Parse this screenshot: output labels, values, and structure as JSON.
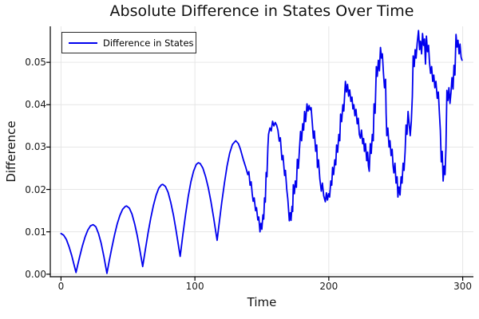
{
  "chart_data": {
    "type": "line",
    "title": "Absolute Difference in States Over Time",
    "xlabel": "Time",
    "ylabel": "Difference",
    "xlim": [
      -8,
      308
    ],
    "ylim": [
      -0.0006,
      0.0585
    ],
    "grid": true,
    "legend_position": "top-left",
    "x_ticks": [
      "0",
      "100",
      "200",
      "300"
    ],
    "y_ticks": [
      "0.00",
      "0.01",
      "0.02",
      "0.03",
      "0.04",
      "0.05"
    ],
    "colors": {
      "series": "#0000ee",
      "grid": "#e6e6e6",
      "axis": "#000000",
      "background": "#ffffff"
    },
    "series": [
      {
        "name": "Difference in States",
        "color": "#0000ee",
        "points": [
          [
            0,
            0.0096
          ],
          [
            2,
            0.0092
          ],
          [
            4,
            0.0082
          ],
          [
            6,
            0.0065
          ],
          [
            8,
            0.0044
          ],
          [
            10,
            0.0019
          ],
          [
            11.2,
            0.0004
          ],
          [
            12.5,
            0.0022
          ],
          [
            14,
            0.0042
          ],
          [
            16,
            0.0067
          ],
          [
            18,
            0.0088
          ],
          [
            20,
            0.0104
          ],
          [
            22,
            0.0114
          ],
          [
            24,
            0.0117
          ],
          [
            26,
            0.0112
          ],
          [
            28,
            0.0096
          ],
          [
            30,
            0.0073
          ],
          [
            32,
            0.0042
          ],
          [
            33.5,
            0.0016
          ],
          [
            34.3,
            0.0002
          ],
          [
            36,
            0.0031
          ],
          [
            38,
            0.0063
          ],
          [
            40,
            0.0093
          ],
          [
            42,
            0.0119
          ],
          [
            44,
            0.0139
          ],
          [
            46,
            0.0153
          ],
          [
            48,
            0.016
          ],
          [
            49,
            0.0161
          ],
          [
            51,
            0.0156
          ],
          [
            53,
            0.0142
          ],
          [
            55,
            0.0119
          ],
          [
            57,
            0.009
          ],
          [
            59,
            0.0055
          ],
          [
            61,
            0.0018
          ],
          [
            63,
            0.0058
          ],
          [
            65,
            0.0097
          ],
          [
            67,
            0.0132
          ],
          [
            69,
            0.0162
          ],
          [
            71,
            0.0186
          ],
          [
            73,
            0.0203
          ],
          [
            75,
            0.0211
          ],
          [
            76,
            0.0212
          ],
          [
            78,
            0.0207
          ],
          [
            80,
            0.0193
          ],
          [
            82,
            0.0169
          ],
          [
            84,
            0.0139
          ],
          [
            86,
            0.0102
          ],
          [
            88,
            0.0062
          ],
          [
            89,
            0.0042
          ],
          [
            91,
            0.0093
          ],
          [
            93,
            0.014
          ],
          [
            95,
            0.0183
          ],
          [
            97,
            0.0218
          ],
          [
            99,
            0.0243
          ],
          [
            101,
            0.0259
          ],
          [
            102.6,
            0.0263
          ],
          [
            104,
            0.0261
          ],
          [
            106,
            0.025
          ],
          [
            108,
            0.023
          ],
          [
            110,
            0.0204
          ],
          [
            112,
            0.0171
          ],
          [
            114,
            0.0133
          ],
          [
            115.5,
            0.0102
          ],
          [
            116.6,
            0.008
          ],
          [
            118,
            0.0117
          ],
          [
            120,
            0.0168
          ],
          [
            122,
            0.0214
          ],
          [
            124,
            0.0255
          ],
          [
            126,
            0.0286
          ],
          [
            128,
            0.0306
          ],
          [
            130.5,
            0.0315
          ],
          [
            132.5,
            0.0308
          ],
          [
            134,
            0.0295
          ],
          [
            136,
            0.0272
          ],
          [
            138,
            0.0252
          ],
          [
            139.5,
            0.0235
          ],
          [
            140.3,
            0.0242
          ],
          [
            141.2,
            0.021
          ],
          [
            142,
            0.0218
          ],
          [
            142.8,
            0.019
          ],
          [
            143.5,
            0.0172
          ],
          [
            144.3,
            0.018
          ],
          [
            145.3,
            0.015
          ],
          [
            146,
            0.0157
          ],
          [
            147,
            0.0128
          ],
          [
            147.7,
            0.0135
          ],
          [
            148.6,
            0.01
          ],
          [
            149.3,
            0.012
          ],
          [
            150,
            0.0106
          ],
          [
            150.8,
            0.014
          ],
          [
            151.4,
            0.013
          ],
          [
            152,
            0.018
          ],
          [
            152.6,
            0.017
          ],
          [
            153.2,
            0.024
          ],
          [
            153.8,
            0.023
          ],
          [
            154.5,
            0.03
          ],
          [
            155,
            0.033
          ],
          [
            156,
            0.0345
          ],
          [
            157,
            0.0338
          ],
          [
            158,
            0.0361
          ],
          [
            159,
            0.035
          ],
          [
            160,
            0.0358
          ],
          [
            161,
            0.0352
          ],
          [
            162,
            0.034
          ],
          [
            163,
            0.0314
          ],
          [
            163.8,
            0.0322
          ],
          [
            165,
            0.027
          ],
          [
            165.8,
            0.028
          ],
          [
            167,
            0.0233
          ],
          [
            167.6,
            0.0245
          ],
          [
            168.6,
            0.02
          ],
          [
            169.4,
            0.0177
          ],
          [
            170,
            0.015
          ],
          [
            170.5,
            0.0126
          ],
          [
            171.2,
            0.0145
          ],
          [
            171.8,
            0.0127
          ],
          [
            172.5,
            0.016
          ],
          [
            173,
            0.0148
          ],
          [
            173.5,
            0.0211
          ],
          [
            174.3,
            0.019
          ],
          [
            175,
            0.022
          ],
          [
            175.8,
            0.0205
          ],
          [
            176.5,
            0.0271
          ],
          [
            177.3,
            0.025
          ],
          [
            178,
            0.029
          ],
          [
            178.9,
            0.0337
          ],
          [
            179.7,
            0.0315
          ],
          [
            180.5,
            0.0355
          ],
          [
            181.2,
            0.034
          ],
          [
            181.9,
            0.0384
          ],
          [
            182.7,
            0.036
          ],
          [
            183.7,
            0.0402
          ],
          [
            184.5,
            0.0385
          ],
          [
            185.3,
            0.0398
          ],
          [
            186,
            0.0388
          ],
          [
            186.8,
            0.0393
          ],
          [
            187.6,
            0.036
          ],
          [
            188.5,
            0.0321
          ],
          [
            189.2,
            0.0338
          ],
          [
            190.2,
            0.029
          ],
          [
            191,
            0.0305
          ],
          [
            191.5,
            0.0252
          ],
          [
            192.3,
            0.027
          ],
          [
            193.3,
            0.0225
          ],
          [
            194.4,
            0.0196
          ],
          [
            195.2,
            0.0215
          ],
          [
            196.2,
            0.0185
          ],
          [
            197.4,
            0.0171
          ],
          [
            198.2,
            0.0192
          ],
          [
            199,
            0.0175
          ],
          [
            199.8,
            0.019
          ],
          [
            200.6,
            0.0182
          ],
          [
            201.5,
            0.022
          ],
          [
            202.2,
            0.021
          ],
          [
            202.8,
            0.0252
          ],
          [
            203.6,
            0.0235
          ],
          [
            204.5,
            0.027
          ],
          [
            205.2,
            0.0258
          ],
          [
            205.8,
            0.0305
          ],
          [
            206.6,
            0.0288
          ],
          [
            207.5,
            0.033
          ],
          [
            208.2,
            0.0315
          ],
          [
            208.8,
            0.0378
          ],
          [
            209.6,
            0.036
          ],
          [
            210.5,
            0.04
          ],
          [
            211.2,
            0.0385
          ],
          [
            211.8,
            0.0421
          ],
          [
            212.4,
            0.0455
          ],
          [
            213.2,
            0.043
          ],
          [
            214,
            0.0448
          ],
          [
            214.8,
            0.042
          ],
          [
            215.6,
            0.0435
          ],
          [
            216.5,
            0.0408
          ],
          [
            217.3,
            0.0418
          ],
          [
            218,
            0.039
          ],
          [
            218.7,
            0.04
          ],
          [
            219.5,
            0.0374
          ],
          [
            220.3,
            0.0389
          ],
          [
            221.2,
            0.0355
          ],
          [
            222,
            0.0368
          ],
          [
            222.8,
            0.033
          ],
          [
            223.6,
            0.0321
          ],
          [
            224.4,
            0.034
          ],
          [
            225.3,
            0.0308
          ],
          [
            226,
            0.032
          ],
          [
            226.6,
            0.029
          ],
          [
            227.4,
            0.0308
          ],
          [
            228.3,
            0.0268
          ],
          [
            229,
            0.0288
          ],
          [
            229.6,
            0.0255
          ],
          [
            230.2,
            0.0243
          ],
          [
            231,
            0.0308
          ],
          [
            231.7,
            0.0285
          ],
          [
            232.5,
            0.033
          ],
          [
            233.2,
            0.0315
          ],
          [
            233.8,
            0.0402
          ],
          [
            234.6,
            0.038
          ],
          [
            235.5,
            0.049
          ],
          [
            236.2,
            0.0467
          ],
          [
            237,
            0.0505
          ],
          [
            237.8,
            0.048
          ],
          [
            238.6,
            0.0535
          ],
          [
            239.4,
            0.051
          ],
          [
            240,
            0.052
          ],
          [
            240.8,
            0.0475
          ],
          [
            241.6,
            0.044
          ],
          [
            242.4,
            0.046
          ],
          [
            242.8,
            0.038
          ],
          [
            243.3,
            0.0327
          ],
          [
            244.1,
            0.0345
          ],
          [
            245,
            0.03
          ],
          [
            245.7,
            0.0315
          ],
          [
            246.5,
            0.028
          ],
          [
            247.3,
            0.0295
          ],
          [
            248,
            0.0255
          ],
          [
            248.6,
            0.0239
          ],
          [
            249.4,
            0.0262
          ],
          [
            250.2,
            0.0215
          ],
          [
            251,
            0.023
          ],
          [
            251.6,
            0.0182
          ],
          [
            252.4,
            0.0206
          ],
          [
            253.2,
            0.0187
          ],
          [
            254,
            0.023
          ],
          [
            254.7,
            0.0215
          ],
          [
            255.5,
            0.0262
          ],
          [
            256.2,
            0.0245
          ],
          [
            257,
            0.029
          ],
          [
            257.7,
            0.0352
          ],
          [
            258.4,
            0.033
          ],
          [
            259.2,
            0.0384
          ],
          [
            260,
            0.0355
          ],
          [
            260.8,
            0.0327
          ],
          [
            261.6,
            0.036
          ],
          [
            262.4,
            0.042
          ],
          [
            263,
            0.0515
          ],
          [
            263.8,
            0.049
          ],
          [
            264.5,
            0.053
          ],
          [
            265.2,
            0.051
          ],
          [
            266,
            0.0545
          ],
          [
            267,
            0.0575
          ],
          [
            267.8,
            0.053
          ],
          [
            268.5,
            0.055
          ],
          [
            269.3,
            0.052
          ],
          [
            270,
            0.0568
          ],
          [
            270.8,
            0.054
          ],
          [
            271.5,
            0.0555
          ],
          [
            272.2,
            0.0496
          ],
          [
            272.9,
            0.0562
          ],
          [
            273.7,
            0.0525
          ],
          [
            274.5,
            0.054
          ],
          [
            275.2,
            0.05
          ],
          [
            276,
            0.0474
          ],
          [
            276.8,
            0.049
          ],
          [
            277.6,
            0.0455
          ],
          [
            278.4,
            0.047
          ],
          [
            279.2,
            0.044
          ],
          [
            280,
            0.0455
          ],
          [
            281,
            0.0415
          ],
          [
            281.8,
            0.043
          ],
          [
            282.6,
            0.038
          ],
          [
            283.3,
            0.034
          ],
          [
            284,
            0.0265
          ],
          [
            284.7,
            0.029
          ],
          [
            285.4,
            0.022
          ],
          [
            286.1,
            0.0255
          ],
          [
            286.8,
            0.0235
          ],
          [
            287.5,
            0.03
          ],
          [
            288.2,
            0.0434
          ],
          [
            289,
            0.041
          ],
          [
            289.7,
            0.044
          ],
          [
            290.5,
            0.0403
          ],
          [
            291.3,
            0.043
          ],
          [
            292,
            0.0464
          ],
          [
            292.8,
            0.0437
          ],
          [
            293.5,
            0.0493
          ],
          [
            294.2,
            0.047
          ],
          [
            295,
            0.0566
          ],
          [
            295.8,
            0.0536
          ],
          [
            296.5,
            0.0552
          ],
          [
            297.3,
            0.052
          ],
          [
            298,
            0.0543
          ],
          [
            298.8,
            0.0512
          ],
          [
            299.5,
            0.0505
          ]
        ]
      }
    ]
  }
}
